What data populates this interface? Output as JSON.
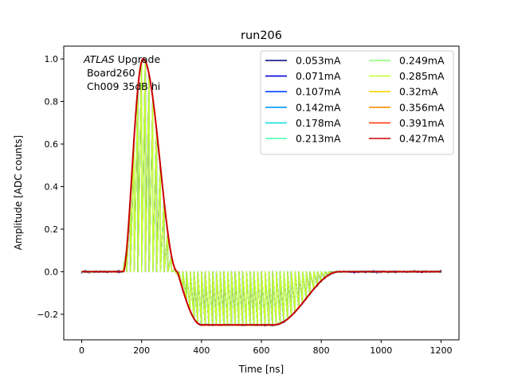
{
  "chart_data": {
    "type": "line",
    "title": "run206",
    "xlabel": "Time [ns]",
    "ylabel": "Amplitude [ADC counts]",
    "xlim": [
      -60,
      1260
    ],
    "ylim": [
      -0.32,
      1.06
    ],
    "xticks": [
      0,
      200,
      400,
      600,
      800,
      1000,
      1200
    ],
    "yticks": [
      -0.2,
      0.0,
      0.2,
      0.4,
      0.6,
      0.8,
      1.0
    ],
    "xtick_labels": [
      "0",
      "200",
      "400",
      "600",
      "800",
      "1000",
      "1200"
    ],
    "ytick_labels": [
      "−0.2",
      "0.0",
      "0.2",
      "0.4",
      "0.6",
      "0.8",
      "1.0"
    ],
    "grid": false,
    "legend_position": "top-right",
    "legend_columns": 2,
    "annotation": {
      "italic": "ATLAS",
      "rest": " Upgrade",
      "line2": " Board260",
      "line3": " Ch009 35dB hi"
    },
    "pulse_shape": {
      "baseline": 0.0,
      "rise_start_ns": 140,
      "peak_ns": 205,
      "peak_value": 1.0,
      "zero_cross_ns": 320,
      "undershoot_value": -0.25,
      "undershoot_end_ns": 640,
      "recover_end_ns": 860,
      "x_end_ns": 1200
    },
    "comb_series_step_ns": 12.5,
    "series": [
      {
        "name": "0.053mA",
        "color": "#00007f",
        "comb": true,
        "noise": 0.006
      },
      {
        "name": "0.071mA",
        "color": "#0000dd",
        "comb": true,
        "noise": 0.005
      },
      {
        "name": "0.107mA",
        "color": "#0040ff",
        "comb": true,
        "noise": 0.004
      },
      {
        "name": "0.142mA",
        "color": "#0098ff",
        "comb": false,
        "noise": 0.004
      },
      {
        "name": "0.178mA",
        "color": "#10e0e0",
        "comb": false,
        "noise": 0.003
      },
      {
        "name": "0.213mA",
        "color": "#44ffb2",
        "comb": false,
        "noise": 0.003
      },
      {
        "name": "0.249mA",
        "color": "#87ff70",
        "comb": true,
        "noise": 0.003
      },
      {
        "name": "0.285mA",
        "color": "#c6ff30",
        "comb": true,
        "noise": 0.002
      },
      {
        "name": "0.32mA",
        "color": "#ffd200",
        "comb": false,
        "noise": 0.002
      },
      {
        "name": "0.356mA",
        "color": "#ff8c00",
        "comb": false,
        "noise": 0.002
      },
      {
        "name": "0.391mA",
        "color": "#ff3a10",
        "comb": false,
        "noise": 0.002
      },
      {
        "name": "0.427mA",
        "color": "#cc0000",
        "comb": false,
        "noise": 0.0
      }
    ]
  }
}
